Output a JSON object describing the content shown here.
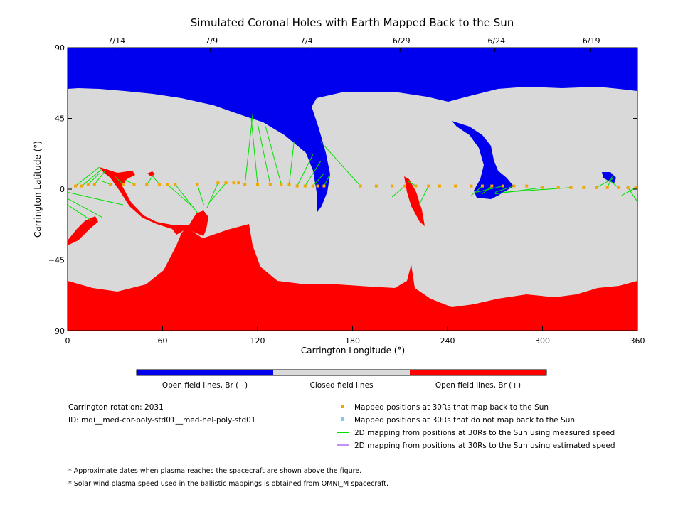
{
  "chart_data": {
    "type": "map",
    "title": "Simulated Coronal Holes with Earth Mapped Back to the Sun",
    "xlabel": "Carrington Longitude (°)",
    "ylabel": "Carrington Latitude (°)",
    "xlim": [
      0,
      360
    ],
    "ylim": [
      -90,
      90
    ],
    "x_ticks": [
      "0",
      "60",
      "120",
      "180",
      "240",
      "300",
      "360"
    ],
    "y_ticks": [
      "90",
      "45",
      "0",
      "−45",
      "−90"
    ],
    "top_date_ticks": [
      {
        "label": "7/14",
        "lon": 30
      },
      {
        "label": "7/9",
        "lon": 90
      },
      {
        "label": "7/4",
        "lon": 150
      },
      {
        "label": "6/29",
        "lon": 210
      },
      {
        "label": "6/24",
        "lon": 270
      },
      {
        "label": "6/19",
        "lon": 330
      }
    ],
    "colorbar": [
      {
        "label": "Open field lines, Br (−)",
        "color": "#0000ee"
      },
      {
        "label": "Closed field lines",
        "color": "#d9d9d9"
      },
      {
        "label": "Open field lines, Br (+)",
        "color": "#ff0000"
      }
    ],
    "region_colors": {
      "negative": "#0000ee",
      "closed": "#d9d9d9",
      "positive": "#ff0000"
    },
    "mapped_points": [
      [
        5,
        2
      ],
      [
        9,
        2
      ],
      [
        13,
        3
      ],
      [
        17,
        3
      ],
      [
        27,
        3
      ],
      [
        35,
        3
      ],
      [
        42,
        3
      ],
      [
        50,
        3
      ],
      [
        58,
        3
      ],
      [
        63,
        3
      ],
      [
        68,
        3
      ],
      [
        82,
        3
      ],
      [
        95,
        4
      ],
      [
        100,
        4
      ],
      [
        105,
        4
      ],
      [
        108,
        4
      ],
      [
        112,
        3
      ],
      [
        120,
        3
      ],
      [
        128,
        3
      ],
      [
        135,
        3
      ],
      [
        140,
        3
      ],
      [
        145,
        2
      ],
      [
        150,
        2
      ],
      [
        155,
        2
      ],
      [
        158,
        2
      ],
      [
        162,
        2
      ],
      [
        185,
        2
      ],
      [
        195,
        2
      ],
      [
        205,
        2
      ],
      [
        213,
        2
      ],
      [
        220,
        2
      ],
      [
        228,
        2
      ],
      [
        235,
        2
      ],
      [
        245,
        2
      ],
      [
        255,
        2
      ],
      [
        262,
        2
      ],
      [
        268,
        2
      ],
      [
        275,
        2
      ],
      [
        282,
        2
      ],
      [
        290,
        2
      ],
      [
        300,
        1
      ],
      [
        310,
        1
      ],
      [
        318,
        1
      ],
      [
        326,
        1
      ],
      [
        334,
        1
      ],
      [
        341,
        1
      ],
      [
        348,
        1
      ],
      [
        354,
        1
      ],
      [
        359,
        1
      ]
    ],
    "mapping_lines_measured": [
      [
        [
          5,
          2
        ],
        [
          20,
          14
        ]
      ],
      [
        [
          9,
          2
        ],
        [
          22,
          13
        ]
      ],
      [
        [
          13,
          3
        ],
        [
          20,
          10
        ]
      ],
      [
        [
          17,
          3
        ],
        [
          24,
          12
        ]
      ],
      [
        [
          27,
          3
        ],
        [
          22,
          5
        ]
      ],
      [
        [
          35,
          3
        ],
        [
          30,
          8
        ]
      ],
      [
        [
          42,
          3
        ],
        [
          36,
          6
        ]
      ],
      [
        [
          50,
          3
        ],
        [
          55,
          10
        ]
      ],
      [
        [
          58,
          3
        ],
        [
          54,
          8
        ]
      ],
      [
        [
          0,
          -2
        ],
        [
          35,
          -10
        ]
      ],
      [
        [
          0,
          -6
        ],
        [
          22,
          -18
        ]
      ],
      [
        [
          0,
          -10
        ],
        [
          15,
          -20
        ]
      ],
      [
        [
          63,
          3
        ],
        [
          80,
          -12
        ]
      ],
      [
        [
          68,
          3
        ],
        [
          82,
          -15
        ]
      ],
      [
        [
          82,
          3
        ],
        [
          86,
          -10
        ]
      ],
      [
        [
          95,
          4
        ],
        [
          88,
          -12
        ]
      ],
      [
        [
          100,
          4
        ],
        [
          90,
          -8
        ]
      ],
      [
        [
          112,
          3
        ],
        [
          117,
          48
        ]
      ],
      [
        [
          120,
          3
        ],
        [
          116,
          45
        ]
      ],
      [
        [
          128,
          3
        ],
        [
          120,
          42
        ]
      ],
      [
        [
          135,
          3
        ],
        [
          125,
          40
        ]
      ],
      [
        [
          140,
          3
        ],
        [
          143,
          30
        ]
      ],
      [
        [
          145,
          2
        ],
        [
          155,
          22
        ]
      ],
      [
        [
          150,
          2
        ],
        [
          160,
          18
        ]
      ],
      [
        [
          155,
          2
        ],
        [
          162,
          10
        ]
      ],
      [
        [
          185,
          2
        ],
        [
          160,
          30
        ]
      ],
      [
        [
          162,
          2
        ],
        [
          165,
          8
        ]
      ],
      [
        [
          213,
          2
        ],
        [
          205,
          -5
        ]
      ],
      [
        [
          220,
          2
        ],
        [
          215,
          5
        ]
      ],
      [
        [
          228,
          2
        ],
        [
          222,
          -10
        ]
      ],
      [
        [
          262,
          2
        ],
        [
          255,
          -4
        ]
      ],
      [
        [
          268,
          2
        ],
        [
          262,
          -3
        ]
      ],
      [
        [
          275,
          2
        ],
        [
          258,
          -2
        ]
      ],
      [
        [
          282,
          2
        ],
        [
          270,
          -2
        ]
      ],
      [
        [
          300,
          1
        ],
        [
          270,
          -3
        ]
      ],
      [
        [
          318,
          1
        ],
        [
          275,
          -2
        ]
      ],
      [
        [
          334,
          1
        ],
        [
          345,
          7
        ]
      ],
      [
        [
          341,
          1
        ],
        [
          344,
          8
        ]
      ],
      [
        [
          348,
          1
        ],
        [
          343,
          5
        ]
      ],
      [
        [
          354,
          1
        ],
        [
          360,
          -8
        ]
      ],
      [
        [
          359,
          1
        ],
        [
          350,
          -4
        ]
      ]
    ],
    "rotation_label": "Carrington rotation: 2031",
    "id_label": "ID: mdi__med-cor-poly-std01__med-hel-poly-std01",
    "legend": [
      {
        "label": "Mapped positions at 30Rs that map back to the Sun",
        "color": "#f0a800",
        "kind": "square"
      },
      {
        "label": "Mapped positions at 30Rs that do not map back to the Sun",
        "color": "#88c4f0",
        "kind": "square"
      },
      {
        "label": "2D mapping from positions at 30Rs to the Sun using measured speed",
        "color": "#00e000",
        "kind": "line"
      },
      {
        "label": "2D mapping from positions at 30Rs to the Sun using estimated speed",
        "color": "#c890f0",
        "kind": "line"
      }
    ],
    "notes": [
      "* Approximate dates when plasma reaches the spacecraft are shown above the figure.",
      "* Solar wind plasma speed used in the ballistic mappings is obtained from OMNI_M spacecraft."
    ]
  }
}
